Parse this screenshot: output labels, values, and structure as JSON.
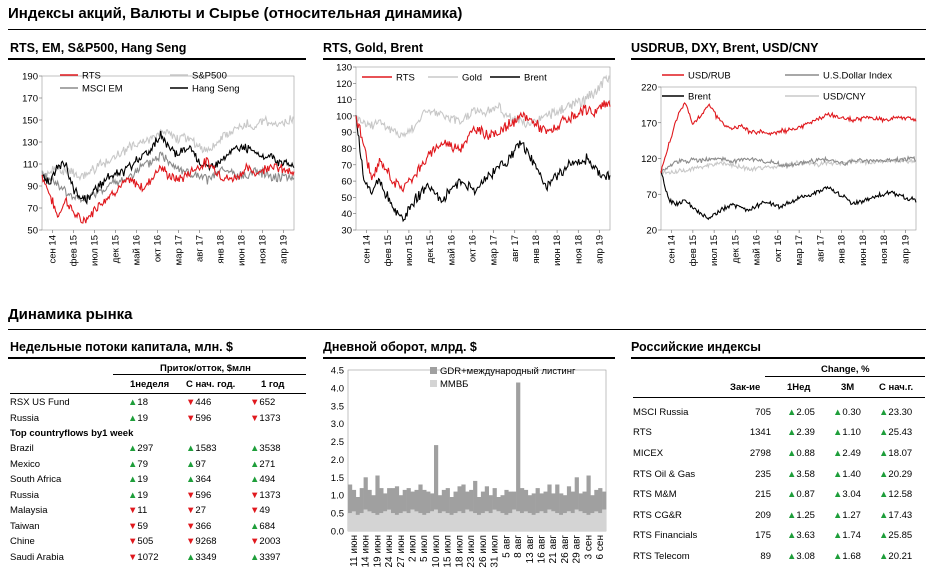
{
  "page_title": "Индексы акций, Валюты и  Сырье (относительная динамика)",
  "section2_title": "Динамика рынка",
  "months": [
    "сен 14",
    "фев 15",
    "июл 15",
    "дек 15",
    "май 16",
    "окт 16",
    "мар 17",
    "авг 17",
    "янв 18",
    "июн 18",
    "ноя 18",
    "апр 19"
  ],
  "chart_data": [
    {
      "type": "line",
      "title": "RTS, EM, S&P500, Hang Seng",
      "ylim": [
        50,
        190
      ],
      "yticks": [
        50,
        70,
        90,
        110,
        130,
        150,
        170,
        190
      ],
      "legend_placement": "top",
      "colors": {
        "RTS": "#e0191e",
        "S&P500": "#c8c8c8",
        "MSCI EM": "#8c8c8c",
        "Hang Seng": "#000000"
      },
      "series": [
        {
          "name": "RTS",
          "values": [
            100,
            82,
            62,
            78,
            66,
            58,
            62,
            72,
            78,
            84,
            90,
            95,
            92,
            88,
            98,
            108,
            100,
            96,
            98,
            104,
            108,
            112,
            105,
            98,
            96,
            100,
            106,
            102,
            104,
            110,
            106,
            104,
            100
          ]
        },
        {
          "name": "S&P500",
          "values": [
            100,
            103,
            106,
            104,
            102,
            98,
            102,
            108,
            110,
            116,
            120,
            124,
            128,
            130,
            134,
            140,
            138,
            132,
            136,
            130,
            126,
            122,
            128,
            134,
            140,
            144,
            146,
            142,
            148,
            150,
            146,
            148,
            150
          ]
        },
        {
          "name": "MSCI EM",
          "values": [
            100,
            96,
            92,
            84,
            80,
            76,
            80,
            84,
            88,
            92,
            94,
            98,
            104,
            108,
            112,
            118,
            114,
            108,
            104,
            100,
            98,
            96,
            100,
            104,
            102,
            98,
            100,
            104,
            102,
            100,
            98,
            100,
            96
          ]
        },
        {
          "name": "Hang Seng",
          "values": [
            100,
            92,
            108,
            110,
            86,
            80,
            78,
            88,
            96,
            100,
            102,
            106,
            112,
            118,
            124,
            136,
            126,
            120,
            124,
            122,
            112,
            106,
            110,
            116,
            122,
            126,
            124,
            120,
            116,
            118,
            112,
            110,
            108
          ]
        }
      ]
    },
    {
      "type": "line",
      "title": "RTS, Gold, Brent",
      "ylim": [
        30,
        130
      ],
      "yticks": [
        30,
        40,
        50,
        60,
        70,
        80,
        90,
        100,
        110,
        120,
        130
      ],
      "legend_placement": "top",
      "colors": {
        "RTS": "#e0191e",
        "Gold": "#c8c8c8",
        "Brent": "#000000"
      },
      "series": [
        {
          "name": "RTS",
          "values": [
            100,
            82,
            60,
            72,
            66,
            58,
            56,
            62,
            68,
            74,
            80,
            84,
            82,
            80,
            86,
            92,
            90,
            88,
            90,
            94,
            96,
            100,
            98,
            94,
            90,
            92,
            96,
            98,
            100,
            104,
            102,
            106,
            108
          ]
        },
        {
          "name": "Gold",
          "values": [
            100,
            96,
            94,
            98,
            92,
            90,
            88,
            92,
            98,
            104,
            102,
            100,
            98,
            96,
            100,
            104,
            102,
            104,
            106,
            100,
            98,
            96,
            94,
            98,
            100,
            102,
            104,
            106,
            108,
            110,
            114,
            120,
            124
          ]
        },
        {
          "name": "Brent",
          "values": [
            100,
            60,
            55,
            62,
            50,
            42,
            36,
            46,
            52,
            58,
            52,
            48,
            56,
            60,
            58,
            54,
            60,
            64,
            70,
            72,
            80,
            82,
            74,
            66,
            56,
            62,
            66,
            70,
            72,
            74,
            68,
            64,
            62
          ]
        }
      ]
    },
    {
      "type": "line",
      "title": "USDRUB, DXY, Brent, USD/CNY",
      "ylim": [
        20,
        220
      ],
      "yticks": [
        20,
        70,
        120,
        170,
        220
      ],
      "legend_placement": "top",
      "colors": {
        "USD/RUB": "#e0191e",
        "U.S.Dollar Index": "#8c8c8c",
        "Brent": "#000000",
        "USD/CNY": "#c8c8c8"
      },
      "series": [
        {
          "name": "USD/RUB",
          "values": [
            100,
            140,
            176,
            200,
            168,
            180,
            196,
            178,
            168,
            160,
            166,
            158,
            156,
            158,
            154,
            158,
            160,
            162,
            166,
            170,
            176,
            182,
            178,
            176,
            174,
            176,
            178,
            176,
            174,
            176,
            178,
            176,
            174
          ]
        },
        {
          "name": "U.S.Dollar Index",
          "values": [
            100,
            110,
            116,
            116,
            118,
            116,
            118,
            120,
            118,
            116,
            118,
            120,
            118,
            116,
            114,
            112,
            110,
            112,
            114,
            116,
            118,
            118,
            116,
            114,
            116,
            118,
            116,
            118,
            116,
            118,
            118,
            120,
            118
          ]
        },
        {
          "name": "Brent",
          "values": [
            100,
            62,
            56,
            62,
            50,
            42,
            36,
            44,
            50,
            56,
            50,
            48,
            54,
            58,
            56,
            52,
            58,
            62,
            68,
            70,
            76,
            80,
            72,
            66,
            56,
            60,
            64,
            68,
            70,
            72,
            68,
            64,
            62
          ]
        },
        {
          "name": "USD/CNY",
          "values": [
            100,
            101,
            102,
            104,
            106,
            108,
            110,
            112,
            112,
            110,
            108,
            106,
            106,
            107,
            108,
            110,
            112,
            114,
            114,
            112,
            112,
            114,
            114,
            114,
            116,
            115,
            114,
            115,
            116,
            116,
            116,
            116,
            116
          ]
        }
      ]
    },
    {
      "type": "bar",
      "title": "Дневной оборот, млрд. $",
      "ylim": [
        0,
        4.5
      ],
      "yticks": [
        "0.0",
        "0.5",
        "1.0",
        "1.5",
        "2.0",
        "2.5",
        "3.0",
        "3.5",
        "4.0",
        "4.5"
      ],
      "xticks": [
        "11 июн",
        "14 июн",
        "19 июн",
        "24 июн",
        "27 июн",
        "2 июл",
        "5 июл",
        "10 июл",
        "15 июл",
        "18 июл",
        "23 июл",
        "26 июл",
        "31 июл",
        "5 авг",
        "8 авг",
        "13 авг",
        "16 авг",
        "21 авг",
        "26 авг",
        "29 авг",
        "3 сен",
        "6 сен"
      ],
      "legend_placement": "top",
      "colors": {
        "GDR+международный листинг": "#a0a0a0",
        "ММВБ": "#d4d4d4"
      },
      "series": [
        {
          "name": "ММВБ",
          "values": [
            0.5,
            0.55,
            0.45,
            0.5,
            0.6,
            0.55,
            0.5,
            0.45,
            0.5,
            0.55,
            0.6,
            0.5,
            0.45,
            0.5,
            0.55,
            0.5,
            0.6,
            0.55,
            0.5,
            0.45,
            0.5,
            0.55,
            0.6,
            0.5,
            0.55,
            0.5,
            0.45,
            0.5,
            0.55,
            0.5,
            0.6,
            0.55,
            0.5,
            0.45,
            0.5,
            0.55,
            0.5,
            0.6,
            0.55,
            0.5,
            0.45,
            0.5,
            0.6,
            0.55,
            0.5,
            0.55,
            0.5,
            0.45,
            0.5,
            0.55,
            0.5,
            0.6,
            0.55,
            0.5,
            0.45,
            0.5,
            0.55,
            0.5,
            0.6,
            0.55,
            0.5,
            0.45,
            0.5,
            0.55,
            0.5,
            0.6
          ]
        },
        {
          "name": "GDR+международный листинг",
          "values": [
            0.8,
            0.6,
            0.5,
            0.7,
            0.9,
            0.6,
            0.5,
            1.1,
            0.7,
            0.5,
            0.6,
            0.7,
            0.8,
            0.5,
            0.6,
            0.7,
            0.5,
            0.6,
            0.8,
            0.7,
            0.6,
            0.5,
            1.8,
            0.5,
            0.6,
            0.7,
            0.5,
            0.6,
            0.7,
            0.8,
            0.5,
            0.6,
            0.9,
            0.5,
            0.6,
            0.7,
            0.5,
            0.6,
            0.4,
            0.5,
            0.7,
            0.6,
            0.5,
            3.6,
            0.7,
            0.6,
            0.5,
            0.6,
            0.7,
            0.5,
            0.6,
            0.7,
            0.5,
            0.8,
            0.6,
            0.5,
            0.7,
            0.6,
            0.9,
            0.5,
            0.6,
            1.1,
            0.5,
            0.6,
            0.7,
            0.5
          ]
        }
      ]
    }
  ],
  "flows": {
    "title": "Недельные потоки капитала, млн. $",
    "group_header": "Приток/отток, $млн",
    "col_headers": [
      "1неделя",
      "С нач. год.",
      "1 год"
    ],
    "subheader": "Top countryflows by1 week",
    "funds": [
      {
        "name": "RSX US Fund",
        "v": [
          "18",
          "446",
          "652"
        ],
        "dir": [
          "up",
          "down",
          "down"
        ]
      },
      {
        "name": "Russia",
        "v": [
          "19",
          "596",
          "1373"
        ],
        "dir": [
          "up",
          "down",
          "down"
        ]
      }
    ],
    "countries": [
      {
        "name": "Brazil",
        "v": [
          "297",
          "1583",
          "3538"
        ],
        "dir": [
          "up",
          "up",
          "up"
        ]
      },
      {
        "name": "Mexico",
        "v": [
          "79",
          "97",
          "271"
        ],
        "dir": [
          "up",
          "up",
          "up"
        ]
      },
      {
        "name": "South Africa",
        "v": [
          "19",
          "364",
          "494"
        ],
        "dir": [
          "up",
          "up",
          "up"
        ]
      },
      {
        "name": "Russia",
        "v": [
          "19",
          "596",
          "1373"
        ],
        "dir": [
          "up",
          "down",
          "down"
        ]
      },
      {
        "name": "Malaysia",
        "v": [
          "11",
          "27",
          "49"
        ],
        "dir": [
          "down",
          "down",
          "down"
        ]
      },
      {
        "name": "Taiwan",
        "v": [
          "59",
          "366",
          "684"
        ],
        "dir": [
          "down",
          "down",
          "up"
        ]
      },
      {
        "name": "Chine",
        "v": [
          "505",
          "9268",
          "2003"
        ],
        "dir": [
          "down",
          "down",
          "down"
        ]
      },
      {
        "name": "Saudi Arabia",
        "v": [
          "1072",
          "3349",
          "3397"
        ],
        "dir": [
          "down",
          "up",
          "up"
        ]
      }
    ]
  },
  "indices": {
    "title": "Российские индексы",
    "change_header": "Change, %",
    "col_headers": [
      "Зак-ие",
      "1Нед",
      "3М",
      "С нач.г."
    ],
    "rows": [
      {
        "name": "MSCI Russia",
        "close": "705",
        "v": [
          "2.05",
          "0.30",
          "23.30"
        ]
      },
      {
        "name": "RTS",
        "close": "1341",
        "v": [
          "2.39",
          "1.10",
          "25.43"
        ]
      },
      {
        "name": "MICEX",
        "close": "2798",
        "v": [
          "0.88",
          "2.49",
          "18.07"
        ]
      },
      {
        "name": "RTS Oil & Gas",
        "close": "235",
        "v": [
          "3.58",
          "1.40",
          "20.29"
        ]
      },
      {
        "name": "RTS M&M",
        "close": "215",
        "v": [
          "0.87",
          "3.04",
          "12.58"
        ]
      },
      {
        "name": "RTS CG&R",
        "close": "209",
        "v": [
          "1.25",
          "1.27",
          "17.43"
        ]
      },
      {
        "name": "RTS Financials",
        "close": "175",
        "v": [
          "3.63",
          "1.74",
          "25.85"
        ]
      },
      {
        "name": "RTS Telecom",
        "close": "89",
        "v": [
          "3.08",
          "1.68",
          "20.21"
        ]
      }
    ]
  }
}
